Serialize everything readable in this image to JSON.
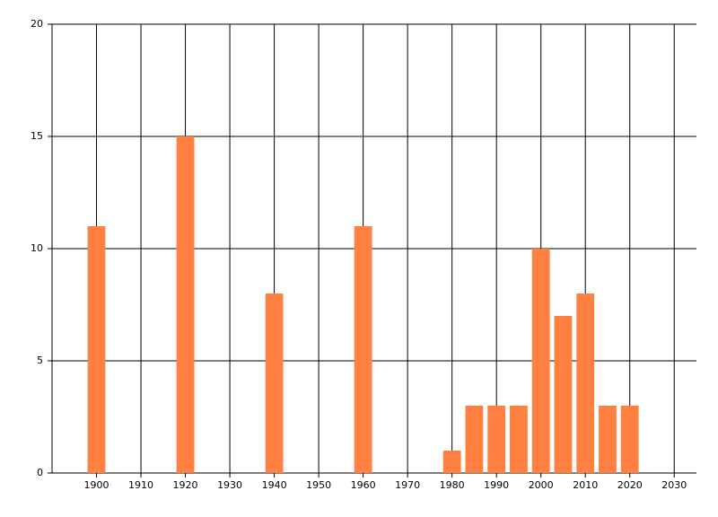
{
  "chart_data": {
    "type": "bar",
    "x": [
      1900,
      1920,
      1940,
      1960,
      1980,
      1985,
      1990,
      1995,
      2000,
      2005,
      2010,
      2015,
      2020
    ],
    "values": [
      11,
      15,
      8,
      11,
      1,
      3,
      3,
      3,
      10,
      7,
      8,
      3,
      3
    ],
    "color": "#ff8040",
    "xlim": [
      1890,
      2035
    ],
    "xticks": [
      1900,
      1910,
      1920,
      1930,
      1940,
      1950,
      1960,
      1970,
      1980,
      1990,
      2000,
      2010,
      2020,
      2030
    ],
    "ylim": [
      0,
      20
    ],
    "yticks": [
      0,
      5,
      10,
      15,
      20
    ],
    "grid": true
  }
}
